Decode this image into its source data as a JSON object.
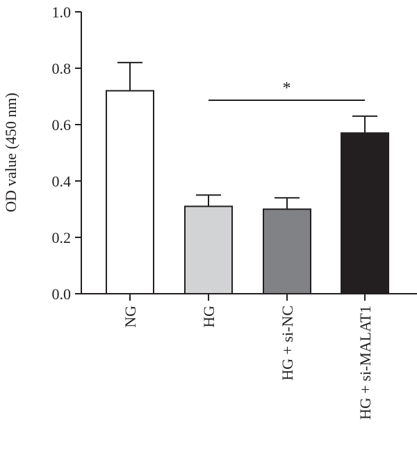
{
  "chart_data": {
    "type": "bar",
    "title": "",
    "xlabel": "",
    "ylabel": "OD value (450 nm)",
    "ylim": [
      0.0,
      1.0
    ],
    "yticks": [
      "0.0",
      "0.2",
      "0.4",
      "0.6",
      "0.8",
      "1.0"
    ],
    "categories": [
      "NG",
      "HG",
      "HG + si-NC",
      "HG + si-MALAT1"
    ],
    "values": [
      0.72,
      0.31,
      0.3,
      0.57
    ],
    "errors": [
      0.1,
      0.04,
      0.04,
      0.06
    ],
    "bar_colors": [
      "#ffffff",
      "#d1d3d4",
      "#808285",
      "#231f20"
    ],
    "edge_color": "#231f20",
    "significance": [
      {
        "from": "HG",
        "to": "HG + si-MALAT1",
        "label": "*"
      }
    ],
    "grid": false,
    "legend": "none"
  }
}
